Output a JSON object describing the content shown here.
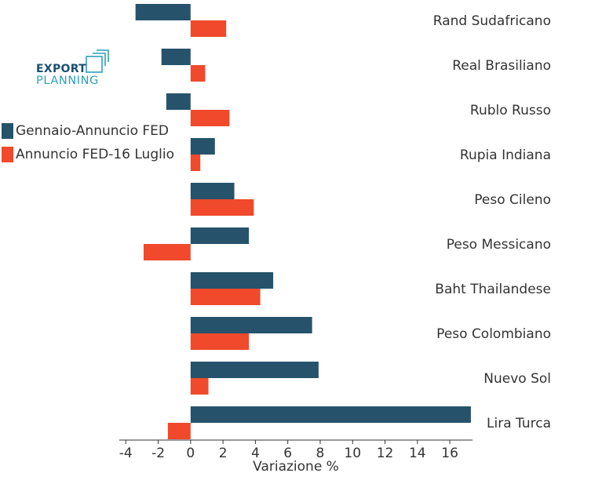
{
  "brand": {
    "logo_line1": "EXPORT",
    "logo_line2": "PLANNING",
    "color_dark": "#1b4f72",
    "color_teal": "#2e9fb8",
    "icon": "export-planning-logo-mark"
  },
  "colors": {
    "series1": "#26536b",
    "series2": "#f0492c"
  },
  "chart_data": {
    "type": "bar",
    "orientation": "horizontal",
    "categories": [
      "Rand Sudafricano",
      "Real Brasiliano",
      "Rublo Russo",
      "Rupia Indiana",
      "Peso Cileno",
      "Peso Messicano",
      "Baht Thailandese",
      "Peso Colombiano",
      "Nuevo Sol",
      "Lira Turca"
    ],
    "series": [
      {
        "name": "Gennaio-Annuncio FED",
        "values": [
          -3.4,
          -1.8,
          -1.5,
          1.5,
          2.7,
          3.6,
          5.1,
          7.5,
          7.9,
          17.3
        ]
      },
      {
        "name": "Annuncio FED-16 Luglio",
        "values": [
          2.2,
          0.9,
          2.4,
          0.6,
          3.9,
          -2.9,
          4.3,
          3.6,
          1.1,
          -1.4
        ]
      }
    ],
    "xlabel": "Variazione %",
    "ylabel": "",
    "xlim": [
      -4.4,
      17.4
    ],
    "xticks": [
      -4,
      -2,
      0,
      2,
      4,
      6,
      8,
      10,
      12,
      14,
      16
    ],
    "xtick_labels": [
      "-4",
      "-2",
      "0",
      "2",
      "4",
      "6",
      "8",
      "10",
      "12",
      "14",
      "16"
    ],
    "grid": false,
    "legend_position": "left"
  }
}
